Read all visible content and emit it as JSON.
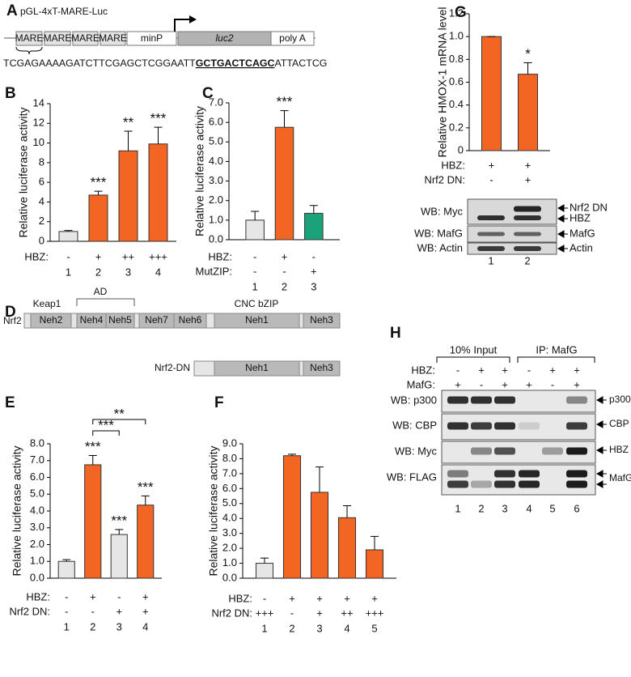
{
  "panel_labels": [
    "A",
    "B",
    "C",
    "D",
    "E",
    "F",
    "G",
    "H"
  ],
  "construct": {
    "name": "pGL-4xT-MARE-Luc",
    "elements": [
      "MARE",
      "MARE",
      "MARE",
      "MARE",
      "minP",
      "luc2",
      "poly A"
    ],
    "sequence": [
      "TCGAGAAAAGATCTTCGAGCTCGGAATT",
      "GCTGACTCAGC",
      "ATTACTCG"
    ]
  },
  "chart_data": [
    {
      "type": "bar",
      "ylabel": "Relative luciferase activity",
      "categories": [
        "1",
        "2",
        "3",
        "4"
      ],
      "values": [
        1.0,
        4.7,
        9.2,
        9.9
      ],
      "errors": [
        0.1,
        0.4,
        2.0,
        1.7
      ],
      "colors": [
        "#e6e6e6",
        "#f26522",
        "#f26522",
        "#f26522"
      ],
      "significance": [
        null,
        "***",
        "**",
        "***"
      ],
      "conditions": [
        {
          "label": "HBZ:",
          "values": [
            "-",
            "+",
            "++",
            "+++"
          ]
        }
      ],
      "ylim": [
        0,
        14
      ],
      "yticks": [
        0,
        2,
        4,
        6,
        8,
        10,
        12,
        14
      ]
    },
    {
      "type": "bar",
      "ylabel": "Relative luciferase activity",
      "categories": [
        "1",
        "2",
        "3"
      ],
      "values": [
        1.0,
        5.75,
        1.35
      ],
      "errors": [
        0.45,
        0.85,
        0.4
      ],
      "colors": [
        "#e6e6e6",
        "#f26522",
        "#1aa37a"
      ],
      "significance": [
        null,
        "***",
        null
      ],
      "conditions": [
        {
          "label": "HBZ:",
          "values": [
            "-",
            "+",
            "-"
          ]
        },
        {
          "label": "MutZIP:",
          "values": [
            "-",
            "-",
            "+"
          ]
        }
      ],
      "ylim": [
        0,
        7
      ],
      "yticks": [
        {
          "value": 0,
          "label": "0.0"
        },
        {
          "value": 1,
          "label": "1.0"
        },
        {
          "value": 2,
          "label": "2.0"
        },
        {
          "value": 3,
          "label": "3.0"
        },
        {
          "value": 4,
          "label": "4.0"
        },
        {
          "value": 5,
          "label": "5.0"
        },
        {
          "value": 6,
          "label": "6.0"
        },
        {
          "value": 7,
          "label": "7.0"
        }
      ]
    },
    {
      "type": "bar",
      "ylabel": "Relative luciferase activity",
      "categories": [
        "1",
        "2",
        "3",
        "4"
      ],
      "values": [
        1.0,
        6.75,
        2.6,
        4.35
      ],
      "errors": [
        0.1,
        0.55,
        0.3,
        0.55
      ],
      "colors": [
        "#e6e6e6",
        "#f26522",
        "#e6e6e6",
        "#f26522"
      ],
      "significance": [
        null,
        "***",
        "***",
        "***"
      ],
      "comparisons": [
        {
          "lanes": [
            "2",
            "3"
          ],
          "label": "***"
        },
        {
          "lanes": [
            "2",
            "4"
          ],
          "label": "**"
        }
      ],
      "conditions": [
        {
          "label": "HBZ:",
          "values": [
            "-",
            "+",
            "-",
            "+"
          ]
        },
        {
          "label": "Nrf2 DN:",
          "values": [
            "-",
            "-",
            "+",
            "+"
          ]
        }
      ],
      "ylim": [
        0,
        8
      ],
      "yticks": [
        {
          "value": 0,
          "label": "0.0"
        },
        {
          "value": 1,
          "label": "1.0"
        },
        {
          "value": 2,
          "label": "2.0"
        },
        {
          "value": 3,
          "label": "3.0"
        },
        {
          "value": 4,
          "label": "4.0"
        },
        {
          "value": 5,
          "label": "5.0"
        },
        {
          "value": 6,
          "label": "6.0"
        },
        {
          "value": 7,
          "label": "7.0"
        },
        {
          "value": 8,
          "label": "8.0"
        }
      ]
    },
    {
      "type": "bar",
      "ylabel": "Relative luciferase activity",
      "categories": [
        "1",
        "2",
        "3",
        "4",
        "5"
      ],
      "values": [
        1.0,
        8.2,
        5.75,
        4.05,
        1.9
      ],
      "errors": [
        0.35,
        0.1,
        1.7,
        0.8,
        0.9
      ],
      "colors": [
        "#e6e6e6",
        "#f26522",
        "#f26522",
        "#f26522",
        "#f26522"
      ],
      "significance": [
        null,
        null,
        null,
        null,
        null
      ],
      "conditions": [
        {
          "label": "HBZ:",
          "values": [
            "-",
            "+",
            "+",
            "+",
            "+"
          ]
        },
        {
          "label": "Nrf2 DN:",
          "values": [
            "+++",
            "-",
            "+",
            "++",
            "+++"
          ]
        }
      ],
      "ylim": [
        0,
        9
      ],
      "yticks": [
        {
          "value": 0,
          "label": "0.0"
        },
        {
          "value": 1,
          "label": "1.0"
        },
        {
          "value": 2,
          "label": "2.0"
        },
        {
          "value": 3,
          "label": "3.0"
        },
        {
          "value": 4,
          "label": "4.0"
        },
        {
          "value": 5,
          "label": "5.0"
        },
        {
          "value": 6,
          "label": "6.0"
        },
        {
          "value": 7,
          "label": "7.0"
        },
        {
          "value": 8,
          "label": "8.0"
        },
        {
          "value": 9,
          "label": "9.0"
        }
      ]
    },
    {
      "type": "bar",
      "ylabel": "Relative HMOX-1 mRNA level",
      "categories": [
        null,
        null
      ],
      "values": [
        1.0,
        0.67
      ],
      "errors": [
        0,
        0.1
      ],
      "colors": [
        "#f26522",
        "#f26522"
      ],
      "significance": [
        null,
        "*"
      ],
      "conditions": [
        {
          "label": "HBZ:",
          "values": [
            "+",
            "+"
          ]
        },
        {
          "label": "Nrf2 DN:",
          "values": [
            "-",
            "+"
          ]
        }
      ],
      "ylim": [
        0,
        1.2
      ],
      "yticks": [
        0,
        0.2,
        0.4,
        0.6,
        0.8,
        {
          "value": 1,
          "label": "1.0"
        },
        1.2
      ]
    }
  ],
  "domains": {
    "labels": [
      "Keap1",
      "AD",
      "CNC bZIP"
    ],
    "nrf2": {
      "name": "Nrf2",
      "domains": [
        "Neh2",
        "Neh4",
        "Neh5",
        "Neh7",
        "Neh6",
        "Neh1",
        "Neh3"
      ]
    },
    "nrf2_dn": {
      "name": "Nrf2-DN",
      "domains": [
        "Neh1",
        "Neh3"
      ]
    }
  },
  "blot_g": {
    "rows": [
      "WB: Myc",
      "WB: MafG",
      "WB: Actin"
    ],
    "bands": [
      "Nrf2 DN",
      "HBZ",
      "MafG",
      "Actin"
    ],
    "lanes": [
      "1",
      "2"
    ]
  },
  "blot_h": {
    "groups": [
      "10% Input",
      "IP: MafG"
    ],
    "conditions": [
      {
        "label": "HBZ:",
        "values": [
          "-",
          "+",
          "+",
          "-",
          "+",
          "+"
        ]
      },
      {
        "label": "MafG:",
        "values": [
          "+",
          "-",
          "+",
          "+",
          "-",
          "+"
        ]
      }
    ],
    "rows": [
      "WB: p300",
      "WB: CBP",
      "WB: Myc",
      "WB: FLAG"
    ],
    "bands": [
      "p300",
      "CBP",
      "HBZ",
      "MafG"
    ],
    "lanes": [
      "1",
      "2",
      "3",
      "4",
      "5",
      "6"
    ]
  }
}
